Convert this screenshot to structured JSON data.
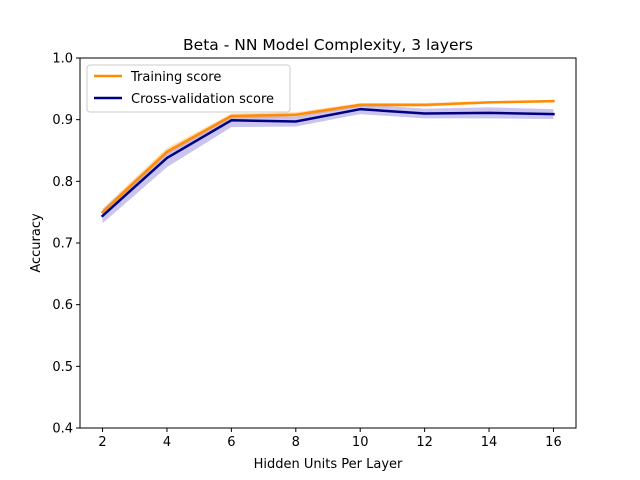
{
  "chart_data": {
    "type": "line",
    "title": "Beta - NN Model Complexity, 3 layers",
    "xlabel": "Hidden Units Per Layer",
    "ylabel": "Accuracy",
    "xlim": [
      1.3,
      16.7
    ],
    "ylim": [
      0.4,
      1.0
    ],
    "x_ticks": [
      2,
      4,
      6,
      8,
      10,
      12,
      14,
      16
    ],
    "x_tick_labels": [
      "2",
      "4",
      "6",
      "8",
      "10",
      "12",
      "14",
      "16"
    ],
    "y_ticks": [
      0.4,
      0.5,
      0.6,
      0.7,
      0.8,
      0.9,
      1.0
    ],
    "y_tick_labels": [
      "0.4",
      "0.5",
      "0.6",
      "0.7",
      "0.8",
      "0.9",
      "1.0"
    ],
    "grid": false,
    "legend_position": "top-left",
    "x": [
      2,
      4,
      6,
      8,
      10,
      12,
      14,
      16
    ],
    "series": [
      {
        "name": "Training score",
        "color": "#ff8c00",
        "band_color": "#ff8c00",
        "values": [
          0.75,
          0.848,
          0.906,
          0.908,
          0.924,
          0.924,
          0.928,
          0.93
        ],
        "lower": [
          0.745,
          0.843,
          0.902,
          0.904,
          0.921,
          0.921,
          0.926,
          0.928
        ],
        "upper": [
          0.756,
          0.854,
          0.91,
          0.912,
          0.927,
          0.927,
          0.93,
          0.932
        ]
      },
      {
        "name": "Cross-validation score",
        "color": "#000080",
        "band_color": "#6a5acd",
        "values": [
          0.744,
          0.838,
          0.899,
          0.897,
          0.917,
          0.91,
          0.911,
          0.909
        ],
        "lower": [
          0.732,
          0.823,
          0.888,
          0.889,
          0.909,
          0.902,
          0.902,
          0.901
        ],
        "upper": [
          0.754,
          0.85,
          0.908,
          0.905,
          0.925,
          0.918,
          0.92,
          0.917
        ]
      }
    ]
  }
}
